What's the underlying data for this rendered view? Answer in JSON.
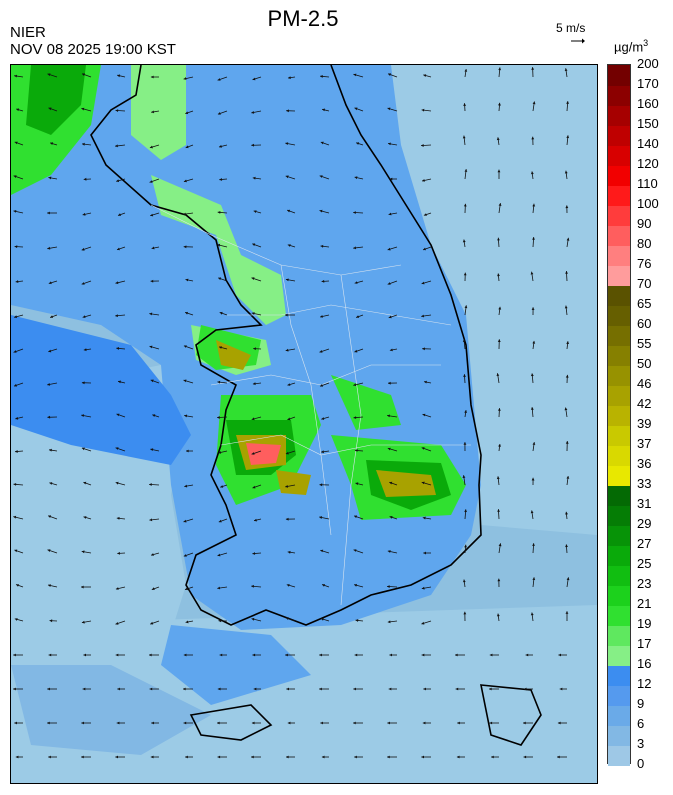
{
  "header": {
    "title": "PM-2.5",
    "agency": "NIER",
    "datetime": "NOV 08 2025 19:00 KST",
    "ref_vector_label": "5 m/s",
    "unit_base": "µg/m",
    "unit_exp": "3"
  },
  "legend": {
    "levels": [
      "0",
      "3",
      "6",
      "9",
      "12",
      "16",
      "17",
      "19",
      "21",
      "23",
      "25",
      "27",
      "29",
      "31",
      "33",
      "36",
      "37",
      "39",
      "42",
      "46",
      "50",
      "55",
      "60",
      "65",
      "70",
      "76",
      "80",
      "90",
      "100",
      "110",
      "120",
      "140",
      "150",
      "160",
      "170",
      "200"
    ],
    "colors": [
      "#9ec8e6",
      "#82b8e4",
      "#6aaae8",
      "#559aee",
      "#3c8df0",
      "#86ef86",
      "#5fe85f",
      "#30e030",
      "#1cd11c",
      "#11be11",
      "#0aaa0a",
      "#079307",
      "#057d05",
      "#046a04",
      "#e8e800",
      "#d9d900",
      "#c9c900",
      "#b9b300",
      "#a8a200",
      "#979200",
      "#868000",
      "#766f00",
      "#665f00",
      "#5a5200",
      "#ff9c9c",
      "#ff7f7f",
      "#ff5e5e",
      "#ff3c3c",
      "#ff1a1a",
      "#f20000",
      "#d80000",
      "#bf0000",
      "#a60000",
      "#8c0000",
      "#730000"
    ]
  },
  "map_colors": {
    "background": "#8ec0e0",
    "sea_light": "#9ccbe6",
    "land_base": "#5fa6ee",
    "land_dark": "#3c8df0",
    "green_light": "#86ef86",
    "green": "#30e030",
    "green_dark": "#0aaa0a",
    "olive": "#a8a200",
    "red": "#ff5e5e",
    "coast": "#000000",
    "border": "#d8e4f0"
  }
}
